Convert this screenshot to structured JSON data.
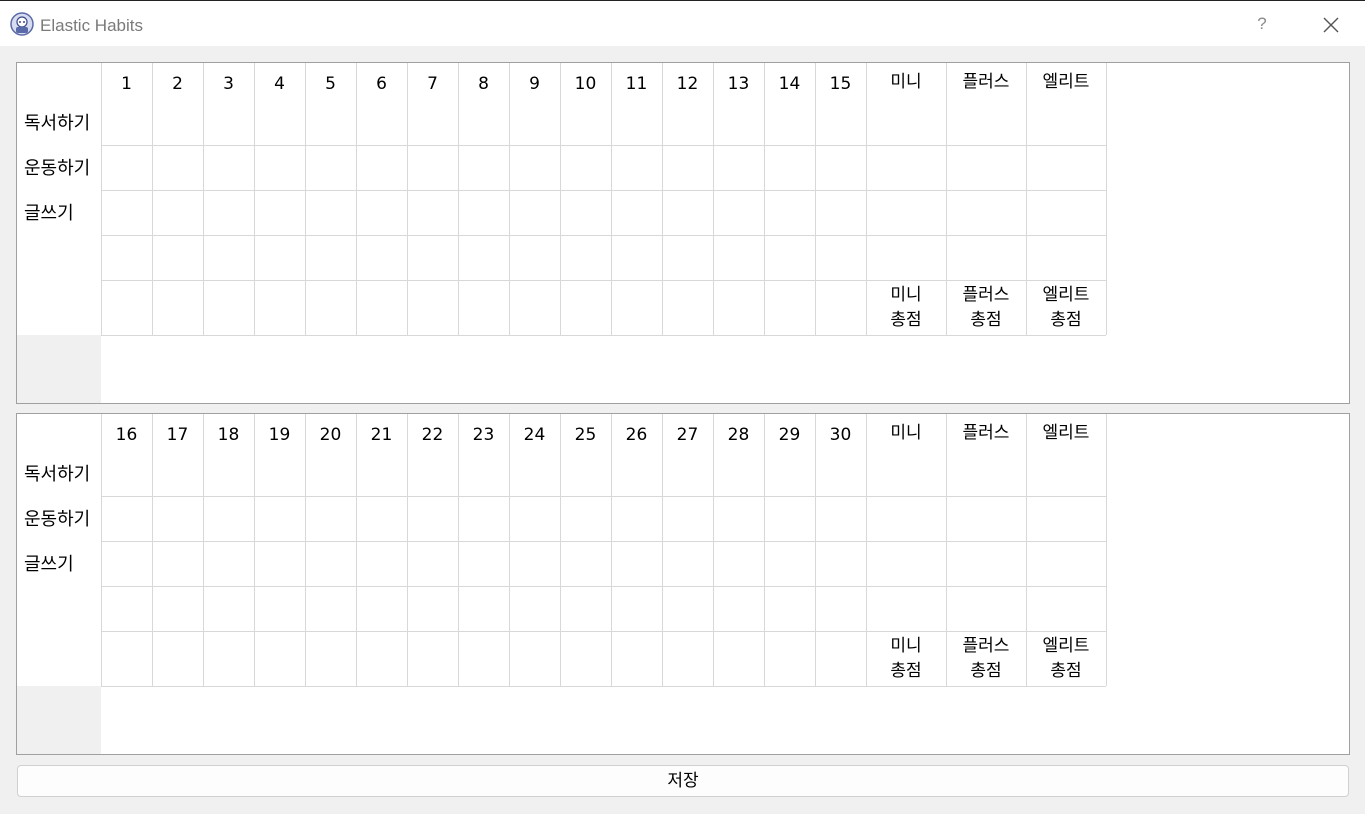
{
  "window": {
    "title": "Elastic Habits",
    "help_label": "?",
    "icons": {
      "app": "app-logo-icon",
      "close": "close-icon"
    }
  },
  "panels": [
    {
      "days": [
        "1",
        "2",
        "3",
        "4",
        "5",
        "6",
        "7",
        "8",
        "9",
        "10",
        "11",
        "12",
        "13",
        "14",
        "15"
      ],
      "levels": [
        "미니",
        "플러스",
        "엘리트"
      ],
      "habits": [
        "독서하기",
        "운동하기",
        "글쓰기"
      ],
      "totals": [
        "미니\n총점",
        "플러스\n총점",
        "엘리트\n총점"
      ]
    },
    {
      "days": [
        "16",
        "17",
        "18",
        "19",
        "20",
        "21",
        "22",
        "23",
        "24",
        "25",
        "26",
        "27",
        "28",
        "29",
        "30"
      ],
      "levels": [
        "미니",
        "플러스",
        "엘리트"
      ],
      "habits": [
        "독서하기",
        "운동하기",
        "글쓰기"
      ],
      "totals": [
        "미니\n총점",
        "플러스\n총점",
        "엘리트\n총점"
      ]
    }
  ],
  "save_label": "저장"
}
